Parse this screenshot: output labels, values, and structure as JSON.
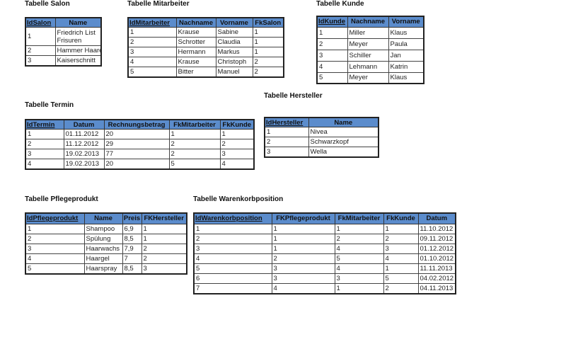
{
  "tables": [
    {
      "id": "salon",
      "title": "Tabelle Salon",
      "headers": [
        "IdSalon",
        "Name"
      ],
      "rows": [
        [
          "1",
          "Friedrich List Frisuren"
        ],
        [
          "2",
          "Hammer Haare"
        ],
        [
          "3",
          "Kaiserschnitt"
        ]
      ]
    },
    {
      "id": "mitarbeiter",
      "title": "Tabelle Mitarbeiter",
      "headers": [
        "IdMitarbeiter",
        "Nachname",
        "Vorname",
        "FkSalon"
      ],
      "rows": [
        [
          "1",
          "Krause",
          "Sabine",
          "1"
        ],
        [
          "2",
          "Schrotter",
          "Claudia",
          "1"
        ],
        [
          "3",
          "Hermann",
          "Markus",
          "1"
        ],
        [
          "4",
          "Krause",
          "Christoph",
          "2"
        ],
        [
          "5",
          "Bitter",
          "Manuel",
          "2"
        ]
      ]
    },
    {
      "id": "kunde",
      "title": "Tabelle Kunde",
      "headers": [
        "IdKunde",
        "Nachname",
        "Vorname"
      ],
      "rows": [
        [
          "1",
          "Miller",
          "Klaus"
        ],
        [
          "2",
          "Meyer",
          "Paula"
        ],
        [
          "3",
          "Schiller",
          "Jan"
        ],
        [
          "4",
          "Lehmann",
          "Katrin"
        ],
        [
          "5",
          "Meyer",
          "Klaus"
        ]
      ]
    },
    {
      "id": "hersteller",
      "title": "Tabelle Hersteller",
      "headers": [
        "IdHersteller",
        "Name"
      ],
      "rows": [
        [
          "1",
          "Nivea"
        ],
        [
          "2",
          "Schwarzkopf"
        ],
        [
          "3",
          "Wella"
        ]
      ]
    },
    {
      "id": "termin",
      "title": "Tabelle Termin",
      "headers": [
        "IdTermin",
        "Datum",
        "Rechnungsbetrag",
        "FkMitarbeiter",
        "FkKunde"
      ],
      "rows": [
        [
          "1",
          "01.11.2012",
          "20",
          "1",
          "1"
        ],
        [
          "2",
          "11.12.2012",
          "29",
          "2",
          "2"
        ],
        [
          "3",
          "19.02.2013",
          "77",
          "2",
          "3"
        ],
        [
          "4",
          "19.02.2013",
          "20",
          "5",
          "4"
        ]
      ]
    },
    {
      "id": "pflegeprodukt",
      "title": "Tabelle Pflegeprodukt",
      "headers": [
        "IdPflegeprodukt",
        "Name",
        "Preis",
        "FKHersteller"
      ],
      "rows": [
        [
          "1",
          "Shampoo",
          "6,9",
          "1"
        ],
        [
          "2",
          "Spülung",
          "8,5",
          "1"
        ],
        [
          "3",
          "Haarwachs",
          "7,9",
          "2"
        ],
        [
          "4",
          "Haargel",
          "7",
          "2"
        ],
        [
          "5",
          "Haarspray",
          "8,5",
          "3"
        ]
      ]
    },
    {
      "id": "warenkorbposition",
      "title": "Tabelle Warenkorbposition",
      "headers": [
        "IdWarenkorbposition",
        "FKPflegeprodukt",
        "FkMitarbeiter",
        "FkKunde",
        "Datum"
      ],
      "rows": [
        [
          "1",
          "1",
          "1",
          "1",
          "11.10.2012"
        ],
        [
          "2",
          "1",
          "2",
          "2",
          "09.11.2012"
        ],
        [
          "3",
          "1",
          "4",
          "3",
          "01.12.2012"
        ],
        [
          "4",
          "2",
          "5",
          "4",
          "01.10.2012"
        ],
        [
          "5",
          "3",
          "4",
          "1",
          "11.11.2013"
        ],
        [
          "6",
          "3",
          "3",
          "5",
          "04.02.2012"
        ],
        [
          "7",
          "4",
          "1",
          "2",
          "04.11.2013"
        ]
      ]
    }
  ],
  "colors": {
    "header_bg": "#5b8ccc",
    "border": "#222222"
  }
}
